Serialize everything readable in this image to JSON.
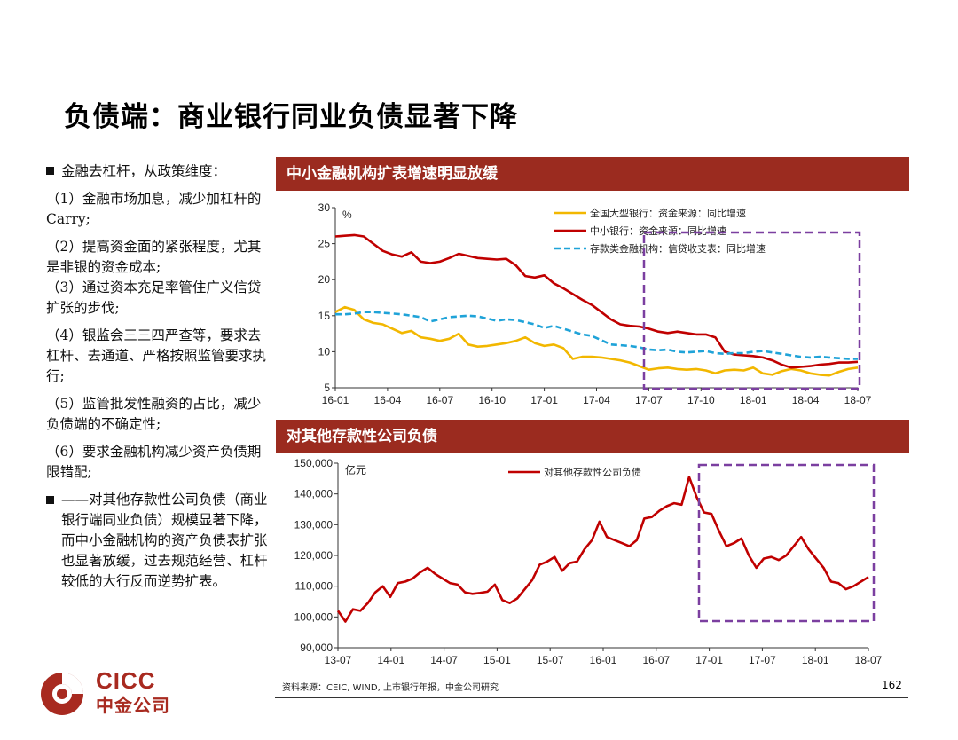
{
  "title": "负债端：商业银行同业负债显著下降",
  "left_text": {
    "p0": "金融去杠杆，从政策维度：",
    "p1": "（1）金融市场加息，减少加杠杆的Carry;",
    "p2": "（2）提高资金面的紧张程度，尤其是非银的资金成本;",
    "p3": "（3）通过资本充足率管住广义信贷扩张的步伐;",
    "p4": "（4）银监会三三四严查等，要求去杠杆、去通道、严格按照监管要求执行;",
    "p5": "（5）监管批发性融资的占比，减少负债端的不确定性;",
    "p6": "（6）要求金融机构减少资产负债期限错配;",
    "p7": "——对其他存款性公司负债（商业银行端同业负债）规模显著下降，而中小金融机构的资产负债表扩张也显著放缓，过去规范经营、杠杆较低的大行反而逆势扩表。"
  },
  "chart_data": [
    {
      "type": "line",
      "title": "中小金融机构扩表增速明显放缓",
      "unit": "%",
      "ylim": [
        5,
        30
      ],
      "yticks": [
        5,
        10,
        15,
        20,
        25,
        30
      ],
      "xticks": [
        "16-01",
        "16-04",
        "16-07",
        "16-10",
        "17-01",
        "17-04",
        "17-07",
        "17-10",
        "18-01",
        "18-04",
        "18-07"
      ],
      "legend_position": "top-right",
      "highlight_box": {
        "x_start": "17-07",
        "x_end": "18-07"
      },
      "series": [
        {
          "name": "全国大型银行：资金来源：同比增速",
          "color": "#f2b700",
          "dashed": false,
          "values": [
            15.5,
            16.2,
            15.8,
            14.5,
            14.0,
            13.8,
            13.2,
            12.6,
            12.9,
            12.0,
            11.8,
            11.5,
            11.8,
            12.5,
            11.0,
            10.7,
            10.8,
            11.0,
            11.2,
            11.5,
            12.0,
            11.2,
            10.8,
            11.0,
            10.5,
            9.0,
            9.3,
            9.3,
            9.2,
            9.0,
            8.8,
            8.5,
            8.0,
            7.5,
            7.7,
            7.8,
            7.6,
            7.5,
            7.6,
            7.4,
            7.0,
            7.4,
            7.5,
            7.4,
            7.8,
            7.0,
            6.8,
            7.3,
            7.6,
            7.4,
            7.0,
            6.8,
            6.7,
            7.2,
            7.6,
            7.8
          ]
        },
        {
          "name": "中小银行：资金来源：同比增速",
          "color": "#c00000",
          "dashed": false,
          "values": [
            26.0,
            26.1,
            26.2,
            26.0,
            25.0,
            24.0,
            23.5,
            23.2,
            23.8,
            22.5,
            22.3,
            22.5,
            23.0,
            23.6,
            23.3,
            23.0,
            22.9,
            22.8,
            22.9,
            22.0,
            20.5,
            20.3,
            20.6,
            19.5,
            18.8,
            18.0,
            17.2,
            16.5,
            15.5,
            14.5,
            13.8,
            13.6,
            13.5,
            13.2,
            12.8,
            12.6,
            12.8,
            12.6,
            12.4,
            12.4,
            12.0,
            10.0,
            9.6,
            9.5,
            9.4,
            9.2,
            8.8,
            8.2,
            7.8,
            7.9,
            8.0,
            8.2,
            8.3,
            8.5,
            8.5,
            8.6
          ]
        },
        {
          "name": "存款类金融机构：信贷收支表：同比增速",
          "color": "#1fa3d8",
          "dashed": true,
          "values": [
            15.2,
            15.2,
            15.3,
            15.5,
            15.5,
            15.4,
            15.3,
            15.2,
            15.0,
            14.8,
            14.2,
            14.5,
            14.8,
            14.9,
            15.0,
            14.9,
            14.6,
            14.3,
            14.5,
            14.4,
            14.1,
            13.8,
            13.3,
            13.6,
            13.2,
            12.8,
            12.4,
            12.2,
            11.6,
            11.0,
            10.9,
            10.8,
            10.6,
            10.3,
            10.2,
            10.3,
            10.0,
            9.9,
            10.0,
            10.1,
            9.8,
            9.7,
            9.8,
            9.8,
            10.0,
            10.1,
            9.9,
            9.7,
            9.5,
            9.3,
            9.2,
            9.3,
            9.2,
            9.1,
            9.0,
            9.0
          ]
        }
      ]
    },
    {
      "type": "line",
      "title": "对其他存款性公司负债",
      "unit": "亿元",
      "ylim": [
        90000,
        150000
      ],
      "yticks": [
        90000,
        100000,
        110000,
        120000,
        130000,
        140000,
        150000
      ],
      "ytick_labels": [
        "90,000",
        "100,000",
        "110,000",
        "120,000",
        "130,000",
        "140,000",
        "150,000"
      ],
      "xticks": [
        "13-07",
        "14-01",
        "14-07",
        "15-01",
        "15-07",
        "16-01",
        "16-07",
        "17-01",
        "17-07",
        "18-01",
        "18-07"
      ],
      "legend_position": "top",
      "highlight_box": {
        "x_start": "16-12",
        "x_end": "18-07"
      },
      "series": [
        {
          "name": "对其他存款性公司负债",
          "color": "#c00000",
          "dashed": false,
          "values": [
            102000,
            98500,
            102500,
            102000,
            104500,
            108000,
            110000,
            106500,
            111000,
            111500,
            112500,
            114500,
            116000,
            114000,
            112500,
            111000,
            110500,
            108000,
            107500,
            107800,
            108200,
            110500,
            105500,
            104500,
            106000,
            109000,
            112000,
            117000,
            118000,
            119500,
            115000,
            117500,
            118000,
            122000,
            125000,
            131000,
            126000,
            125000,
            124000,
            123000,
            125000,
            132000,
            132500,
            134500,
            136000,
            137000,
            136500,
            145500,
            139000,
            134000,
            133500,
            128000,
            123000,
            124000,
            125500,
            120000,
            116000,
            119000,
            119500,
            118500,
            120000,
            123000,
            126000,
            122000,
            119000,
            116000,
            111500,
            111000,
            109000,
            110000,
            111500,
            113000
          ]
        }
      ]
    }
  ],
  "source_note": "资料来源：CEIC, WIND, 上市银行年报，中金公司研究",
  "page_number": "162",
  "logo": {
    "en": "CICC",
    "cn": "中金公司"
  }
}
